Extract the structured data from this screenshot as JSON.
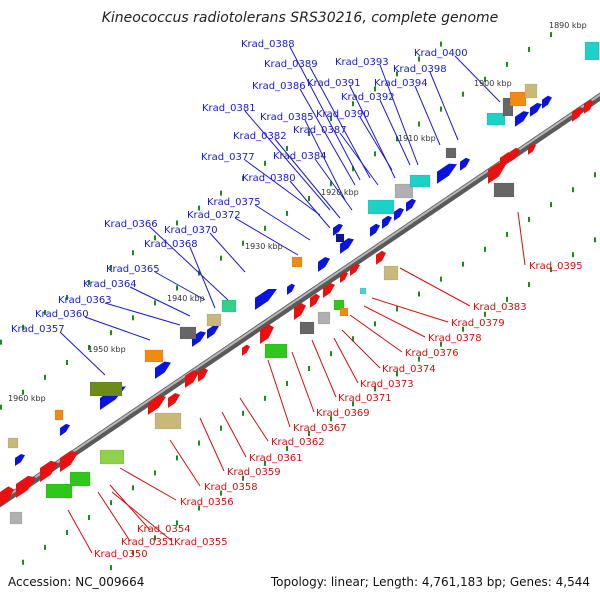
{
  "title": "Kineococcus radiotolerans SRS30216, complete genome",
  "footer": {
    "accession": "Accession: NC_009664",
    "summary": "Topology: linear; Length: 4,761,183 bp; Genes: 4,544"
  },
  "colors": {
    "forward_label": "#1a1acc",
    "reverse_label": "#d01010",
    "forward_gene": "#0a14e0",
    "reverse_gene": "#e81010",
    "backbone": "#888888",
    "tick": "#1a8c1a"
  },
  "kbp_markers": [
    "1890 kbp",
    "1900 kbp",
    "1910 kbp",
    "1920 kbp",
    "1930 kbp",
    "1940 kbp",
    "1950 kbp",
    "1960 kbp"
  ],
  "forward_labels": [
    "Krad_0388",
    "Krad_0389",
    "Krad_0393",
    "Krad_0400",
    "Krad_0398",
    "Krad_0391",
    "Krad_0394",
    "Krad_0386",
    "Krad_0392",
    "Krad_0381",
    "Krad_0390",
    "Krad_0385",
    "Krad_0387",
    "Krad_0382",
    "Krad_0384",
    "Krad_0377",
    "Krad_0380",
    "Krad_0375",
    "Krad_0372",
    "Krad_0366",
    "Krad_0370",
    "Krad_0368",
    "Krad_0365",
    "Krad_0364",
    "Krad_0363",
    "Krad_0360",
    "Krad_0357"
  ],
  "reverse_labels": [
    "Krad_0395",
    "Krad_0383",
    "Krad_0379",
    "Krad_0378",
    "Krad_0376",
    "Krad_0374",
    "Krad_0373",
    "Krad_0371",
    "Krad_0369",
    "Krad_0367",
    "Krad_0362",
    "Krad_0361",
    "Krad_0359",
    "Krad_0358",
    "Krad_0356",
    "Krad_0354",
    "Krad_0351",
    "Krad_0355",
    "Krad_0350"
  ]
}
